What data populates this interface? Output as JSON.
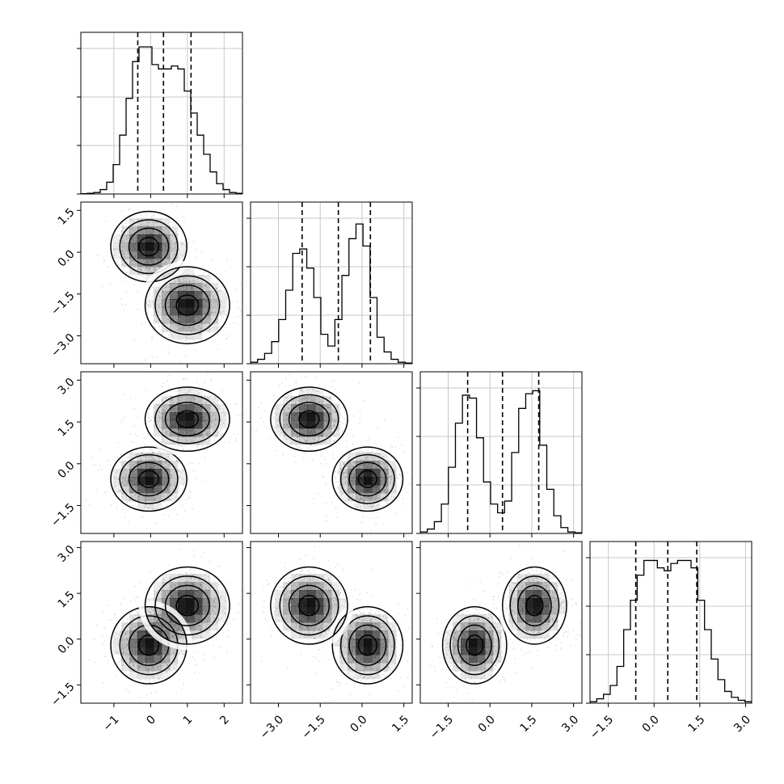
{
  "chart_data": {
    "type": "corner",
    "grid": true,
    "quantile_lines": "dashed",
    "parameters": [
      {
        "range": [
          -1.9,
          2.5
        ],
        "ticks": [
          -1,
          0,
          1,
          2
        ],
        "tick_labels": [
          "−1",
          "0",
          "1",
          "2"
        ],
        "quantiles": [
          -0.35,
          0.35,
          1.1
        ]
      },
      {
        "range": [
          -4.0,
          1.8
        ],
        "ticks": [
          -3.0,
          -1.5,
          0.0,
          1.5
        ],
        "tick_labels": [
          "−3.0",
          "−1.5",
          "0.0",
          "1.5"
        ],
        "quantiles": [
          -2.15,
          -0.85,
          0.3
        ]
      },
      {
        "range": [
          -2.5,
          3.3
        ],
        "ticks": [
          -1.5,
          0.0,
          1.5,
          3.0
        ],
        "tick_labels": [
          "−1.5",
          "0.0",
          "1.5",
          "3.0"
        ],
        "quantiles": [
          -0.8,
          0.45,
          1.75
        ]
      },
      {
        "range": [
          -2.1,
          3.2
        ],
        "ticks": [
          -1.5,
          0.0,
          1.5,
          3.0
        ],
        "tick_labels": [
          "−1.5",
          "0.0",
          "1.5",
          "3.0"
        ],
        "quantiles": [
          -0.6,
          0.45,
          1.4
        ]
      }
    ],
    "histograms": [
      [
        0.2,
        0.5,
        1,
        3,
        8,
        20,
        40,
        65,
        90,
        100,
        100,
        88,
        85,
        85,
        87,
        85,
        70,
        55,
        40,
        27,
        15,
        7,
        3,
        1,
        0.5
      ],
      [
        1,
        3,
        7,
        15,
        30,
        50,
        75,
        78,
        65,
        45,
        20,
        12,
        30,
        60,
        85,
        95,
        80,
        45,
        18,
        8,
        3,
        1,
        0.5
      ],
      [
        1,
        3,
        8,
        20,
        45,
        75,
        94,
        92,
        65,
        35,
        20,
        14,
        22,
        55,
        85,
        95,
        97,
        60,
        30,
        12,
        4,
        1,
        0.5
      ],
      [
        1,
        3,
        6,
        12,
        25,
        50,
        70,
        87,
        97,
        97,
        92,
        90,
        95,
        97,
        97,
        92,
        70,
        50,
        30,
        16,
        8,
        4,
        2,
        1
      ]
    ],
    "components": [
      {
        "weight": 0.5,
        "mean": [
          -0.05,
          0.2,
          -0.55,
          -0.2
        ],
        "sd": [
          0.45,
          0.55,
          0.5,
          0.55
        ]
      },
      {
        "weight": 0.5,
        "mean": [
          1.0,
          -1.9,
          1.6,
          1.1
        ],
        "sd": [
          0.5,
          0.6,
          0.5,
          0.55
        ]
      }
    ]
  }
}
